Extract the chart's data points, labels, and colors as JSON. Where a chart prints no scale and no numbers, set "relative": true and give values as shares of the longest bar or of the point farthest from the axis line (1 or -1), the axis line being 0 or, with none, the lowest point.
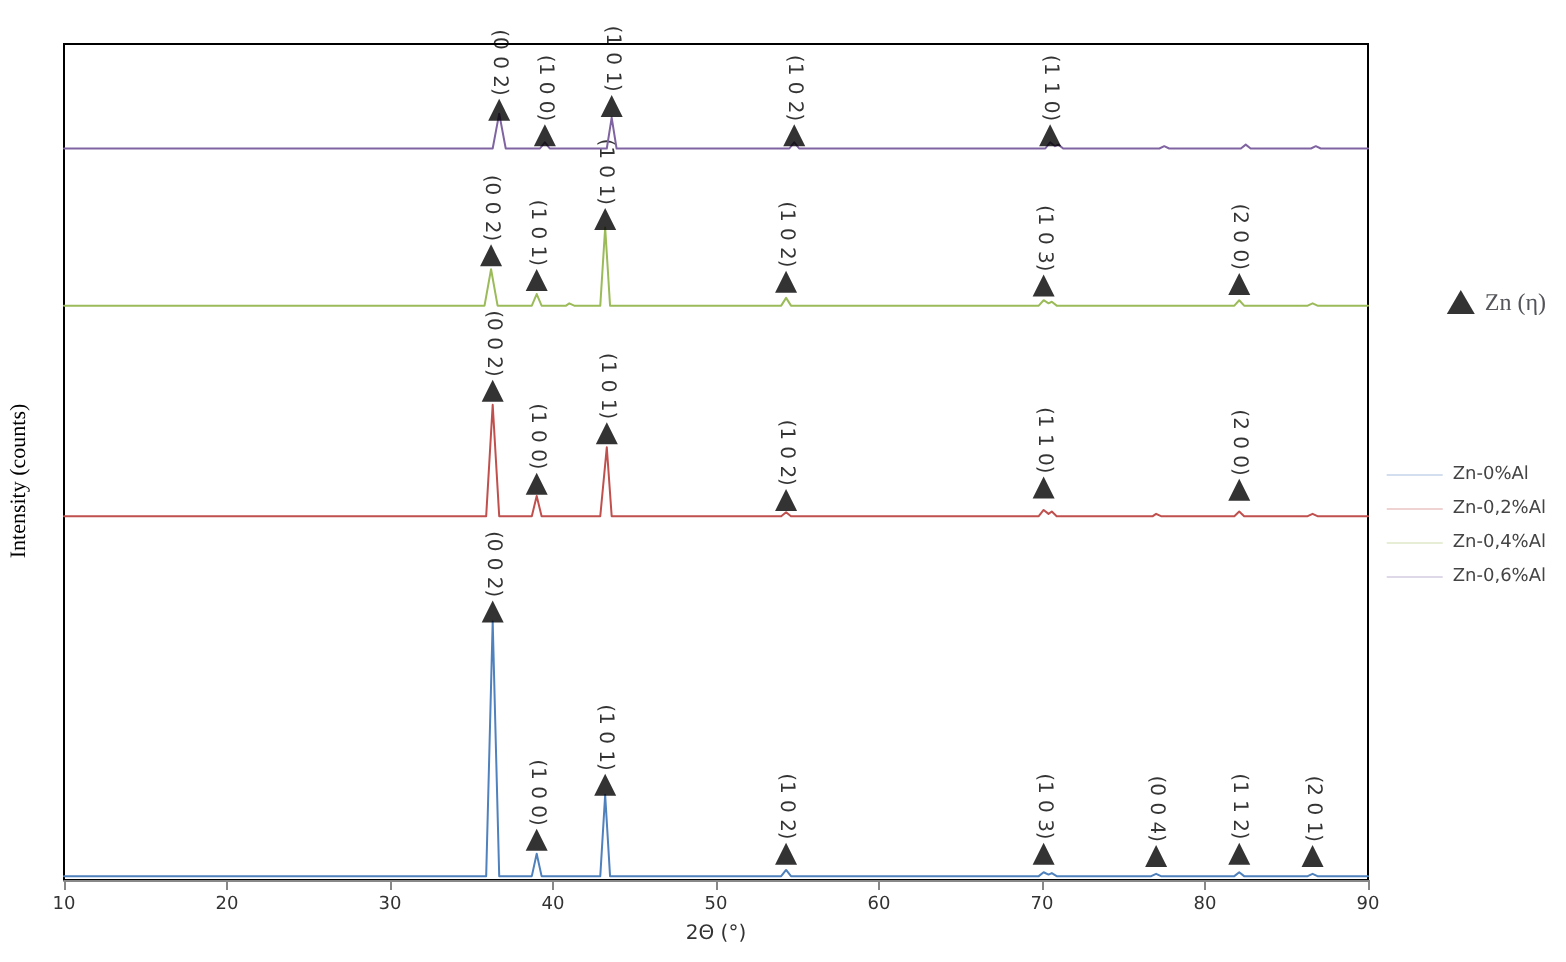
{
  "chart_data": {
    "type": "line",
    "relative": true,
    "xlabel": "2Θ (°)",
    "ylabel": "Intensity (counts)",
    "xlim": [
      10,
      90
    ],
    "xticks": [
      10,
      20,
      30,
      40,
      50,
      60,
      70,
      80,
      90
    ],
    "grid": false,
    "legend": "right",
    "marker": "none",
    "line_style": "solid",
    "series": [
      {
        "name": "Zn-0%Al",
        "color": "#4f81bd",
        "x": [
          10,
          35.9,
          36.3,
          36.7,
          38.7,
          39.0,
          39.3,
          42.9,
          43.2,
          43.5,
          54.0,
          54.3,
          54.6,
          69.8,
          70.1,
          70.4,
          70.6,
          70.9,
          76.7,
          77.0,
          77.3,
          81.8,
          82.1,
          82.4,
          86.3,
          86.6,
          86.9,
          90
        ],
        "values": [
          0.005,
          0.005,
          0.334,
          0.005,
          0.005,
          0.034,
          0.005,
          0.005,
          0.11,
          0.005,
          0.005,
          0.013,
          0.005,
          0.005,
          0.01,
          0.007,
          0.009,
          0.005,
          0.005,
          0.008,
          0.005,
          0.005,
          0.01,
          0.005,
          0.005,
          0.008,
          0.005,
          0.005
        ]
      },
      {
        "name": "Zn-0,2%Al",
        "color": "#c0504d",
        "x": [
          10,
          35.9,
          36.3,
          36.7,
          38.7,
          39.0,
          39.3,
          42.9,
          43.3,
          43.6,
          54.0,
          54.3,
          54.6,
          69.8,
          70.1,
          70.4,
          70.6,
          70.9,
          76.8,
          77.0,
          77.3,
          81.8,
          82.1,
          82.4,
          86.3,
          86.6,
          86.9,
          90
        ],
        "values": [
          0.47,
          0.47,
          0.614,
          0.47,
          0.47,
          0.496,
          0.47,
          0.47,
          0.559,
          0.47,
          0.47,
          0.475,
          0.47,
          0.47,
          0.478,
          0.473,
          0.476,
          0.47,
          0.47,
          0.473,
          0.47,
          0.47,
          0.476,
          0.47,
          0.47,
          0.473,
          0.47,
          0.47
        ]
      },
      {
        "name": "Zn-0,4%Al",
        "color": "#9bbb59",
        "x": [
          10,
          35.8,
          36.2,
          36.6,
          38.7,
          39.0,
          39.3,
          40.8,
          41.0,
          41.3,
          42.9,
          43.2,
          43.5,
          54.0,
          54.3,
          54.6,
          69.8,
          70.1,
          70.4,
          70.6,
          70.9,
          81.8,
          82.1,
          82.4,
          86.3,
          86.6,
          86.9,
          90
        ],
        "values": [
          0.742,
          0.742,
          0.789,
          0.742,
          0.742,
          0.757,
          0.742,
          0.742,
          0.745,
          0.742,
          0.742,
          0.843,
          0.742,
          0.742,
          0.752,
          0.742,
          0.742,
          0.749,
          0.745,
          0.747,
          0.742,
          0.742,
          0.749,
          0.742,
          0.742,
          0.745,
          0.742,
          0.742
        ]
      },
      {
        "name": "Zn-0,6%Al",
        "color": "#8064a2",
        "x": [
          10,
          36.3,
          36.7,
          37.1,
          39.2,
          39.5,
          39.8,
          43.3,
          43.6,
          43.9,
          54.5,
          54.8,
          55.1,
          70.2,
          70.5,
          70.8,
          71.0,
          71.3,
          77.2,
          77.5,
          77.8,
          82.2,
          82.5,
          82.8,
          86.5,
          86.8,
          87.1,
          90
        ],
        "values": [
          0.945,
          0.945,
          0.99,
          0.945,
          0.945,
          0.953,
          0.945,
          0.945,
          0.985,
          0.945,
          0.945,
          0.953,
          0.945,
          0.945,
          0.953,
          0.948,
          0.95,
          0.945,
          0.945,
          0.948,
          0.945,
          0.945,
          0.95,
          0.945,
          0.945,
          0.948,
          0.945,
          0.945
        ]
      },
      {
        "name": "Zn (η)",
        "type": "scatter",
        "marker": "triangle",
        "color": "#000000",
        "x": [
          36.3,
          39.0,
          43.2,
          54.3,
          70.1,
          77.0,
          82.1,
          86.6,
          36.3,
          39.0,
          43.3,
          54.3,
          70.1,
          82.1,
          36.2,
          39.0,
          43.2,
          54.3,
          70.1,
          82.1,
          36.7,
          39.5,
          43.6,
          54.8,
          70.5
        ],
        "values": [
          0.347,
          0.052,
          0.123,
          0.034,
          0.034,
          0.031,
          0.034,
          0.031,
          0.632,
          0.512,
          0.577,
          0.491,
          0.507,
          0.504,
          0.807,
          0.775,
          0.854,
          0.773,
          0.768,
          0.77,
          0.995,
          0.962,
          1,
          0.962,
          0.962
        ]
      }
    ],
    "annotations": [
      {
        "text": "(0 0 2)",
        "x": 36.3,
        "y": 0.347
      },
      {
        "text": "(1 0 0)",
        "x": 39.0,
        "y": 0.052
      },
      {
        "text": "(1 0 1)",
        "x": 43.2,
        "y": 0.123
      },
      {
        "text": "(1 0 2)",
        "x": 54.3,
        "y": 0.034
      },
      {
        "text": "(1 0 3)",
        "x": 70.1,
        "y": 0.034
      },
      {
        "text": "(0 0 4)",
        "x": 77.0,
        "y": 0.031
      },
      {
        "text": "(1 1 2)",
        "x": 82.1,
        "y": 0.034
      },
      {
        "text": "(2 0 1)",
        "x": 86.6,
        "y": 0.031
      },
      {
        "text": "(0 0 2)",
        "x": 36.3,
        "y": 0.632
      },
      {
        "text": "(1 0 0)",
        "x": 39.0,
        "y": 0.512
      },
      {
        "text": "(1 0 1)",
        "x": 43.3,
        "y": 0.577
      },
      {
        "text": "(1 0 2)",
        "x": 54.3,
        "y": 0.491
      },
      {
        "text": "(1 1 0)",
        "x": 70.1,
        "y": 0.507
      },
      {
        "text": "(2 0 0)",
        "x": 82.1,
        "y": 0.504
      },
      {
        "text": "(0 0 2)",
        "x": 36.2,
        "y": 0.807
      },
      {
        "text": "(1 0 1)",
        "x": 39.0,
        "y": 0.775
      },
      {
        "text": "(1 0 1)",
        "x": 43.2,
        "y": 0.854
      },
      {
        "text": "(1 0 2)",
        "x": 54.3,
        "y": 0.773
      },
      {
        "text": "(1 0 3)",
        "x": 70.1,
        "y": 0.768
      },
      {
        "text": "(2 0 0)",
        "x": 82.1,
        "y": 0.77
      },
      {
        "text": "(0 0 2)",
        "x": 36.7,
        "y": 0.995
      },
      {
        "text": "(1 0 0)",
        "x": 39.5,
        "y": 0.962
      },
      {
        "text": "(1 0 1)",
        "x": 43.6,
        "y": 1
      },
      {
        "text": "(1 0 2)",
        "x": 54.8,
        "y": 0.962
      },
      {
        "text": "(1 1 0)",
        "x": 70.5,
        "y": 0.962
      }
    ]
  }
}
